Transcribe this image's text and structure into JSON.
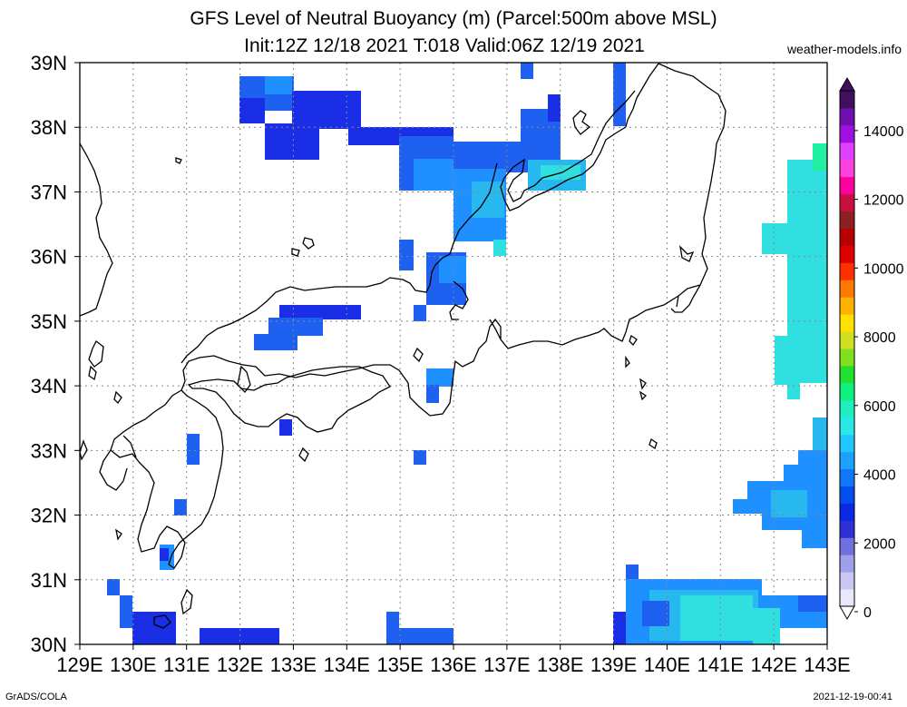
{
  "title_line1": "GFS Level of Neutral Buoyancy (m) (Parcel:500m above MSL)",
  "title_line2": "Init:12Z 12/18 2021 T:018 Valid:06Z 12/19 2021",
  "site": "weather-models.info",
  "footer_left": "GrADS/COLA",
  "footer_right": "2021-12-19-00:41",
  "map": {
    "lon_range": [
      129,
      143
    ],
    "lat_range": [
      30,
      39
    ],
    "lon_labels": [
      "129E",
      "130E",
      "131E",
      "132E",
      "133E",
      "134E",
      "135E",
      "136E",
      "137E",
      "138E",
      "139E",
      "140E",
      "141E",
      "142E",
      "143E"
    ],
    "lat_labels": [
      "30N",
      "31N",
      "32N",
      "33N",
      "34N",
      "35N",
      "36N",
      "37N",
      "38N",
      "39N"
    ]
  },
  "colorbar": {
    "labels": [
      "0",
      "2000",
      "4000",
      "6000",
      "8000",
      "10000",
      "12000",
      "14000"
    ],
    "colors": [
      "#e8e8fa",
      "#c8c8f2",
      "#a0a0ea",
      "#7070e0",
      "#3030d8",
      "#0a28e6",
      "#0050f0",
      "#1078f8",
      "#1ea0ff",
      "#20c8ff",
      "#28e8e8",
      "#20f0c0",
      "#10f080",
      "#20e030",
      "#80e020",
      "#d0e020",
      "#ffe000",
      "#ffb000",
      "#ff7800",
      "#ff3000",
      "#e00000",
      "#b80000",
      "#902020",
      "#c81040",
      "#ff00a0",
      "#ff40e0",
      "#e040ff",
      "#a010e0",
      "#7010b0",
      "#401060"
    ]
  },
  "colors": {
    "blue_dark": "#1a2ee6",
    "blue": "#1e60f0",
    "blue_light": "#1e90ff",
    "sky": "#28b8f0",
    "cyan": "#30e0e0"
  }
}
